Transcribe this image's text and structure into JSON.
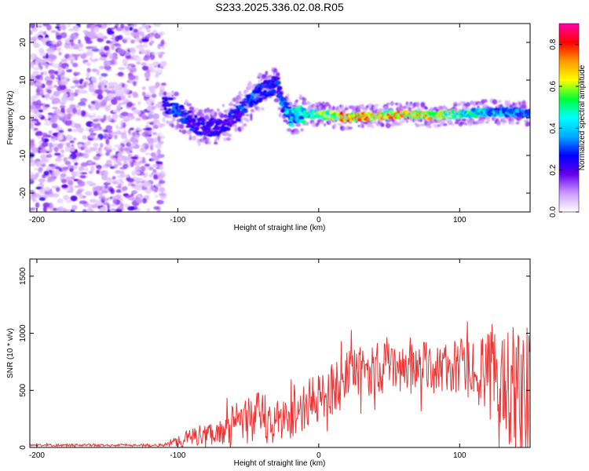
{
  "figure_title": "S233.2025.336.02.08.R05",
  "chart_data": [
    {
      "type": "heatmap",
      "title": "S233.2025.336.02.08.R05",
      "xlabel": "Height of straight line (km)",
      "ylabel": "Frequency (Hz)",
      "xlim": [
        -205,
        150
      ],
      "ylim": [
        -25,
        25
      ],
      "x_ticks": [
        -200,
        -100,
        0,
        100
      ],
      "y_ticks": [
        -20,
        -10,
        0,
        10,
        20
      ],
      "colorbar": {
        "label": "Normalized spectral amplitude",
        "range": [
          0,
          0.9
        ],
        "ticks": [
          0.0,
          0.2,
          0.4,
          0.6,
          0.8
        ],
        "colors": [
          "#ffffff",
          "#cc99ff",
          "#6600ee",
          "#0000ff",
          "#00aaff",
          "#00ffff",
          "#00ff33",
          "#ffff00",
          "#ff9900",
          "#ff0000",
          "#ff00aa"
        ]
      },
      "noise_region_km": [
        -205,
        -110
      ],
      "signal_track": {
        "x": [
          -110,
          -100,
          -90,
          -80,
          -70,
          -60,
          -50,
          -45,
          -40,
          -35,
          -30,
          -25,
          -20,
          -10,
          0,
          20,
          40,
          60,
          80,
          100,
          120,
          140,
          150
        ],
        "freq_hz": [
          4,
          2,
          -1,
          -3,
          -2,
          0,
          4,
          6,
          7,
          8,
          9,
          3,
          0,
          1,
          1,
          0,
          0.5,
          1,
          0.5,
          1,
          1.5,
          1.5,
          1
        ],
        "amplitude": [
          0.3,
          0.35,
          0.3,
          0.3,
          0.25,
          0.3,
          0.35,
          0.35,
          0.3,
          0.3,
          0.3,
          0.35,
          0.5,
          0.5,
          0.6,
          0.85,
          0.85,
          0.8,
          0.8,
          0.6,
          0.45,
          0.4,
          0.35
        ]
      }
    },
    {
      "type": "line",
      "xlabel": "Height of straight line (km)",
      "ylabel": "SNR (10 * v/v)",
      "xlim": [
        -205,
        150
      ],
      "ylim": [
        0,
        1650
      ],
      "x_ticks": [
        -200,
        -100,
        0,
        100
      ],
      "y_ticks": [
        0,
        500,
        1000,
        1500
      ],
      "color": "#ee3333",
      "envelope": {
        "x": [
          -205,
          -110,
          -100,
          -90,
          -80,
          -70,
          -60,
          -50,
          -40,
          -30,
          -20,
          -10,
          0,
          10,
          20,
          30,
          40,
          50,
          60,
          70,
          80,
          90,
          100,
          110,
          120,
          130,
          140,
          145,
          150
        ],
        "mean": [
          20,
          20,
          60,
          90,
          120,
          140,
          200,
          250,
          260,
          220,
          280,
          360,
          430,
          520,
          600,
          660,
          700,
          700,
          700,
          710,
          700,
          690,
          700,
          680,
          650,
          600,
          550,
          500,
          450
        ],
        "spread": [
          10,
          12,
          60,
          80,
          100,
          110,
          180,
          220,
          240,
          200,
          200,
          220,
          220,
          240,
          240,
          230,
          240,
          230,
          220,
          220,
          230,
          230,
          250,
          280,
          350,
          480,
          650,
          700,
          600
        ]
      }
    }
  ]
}
